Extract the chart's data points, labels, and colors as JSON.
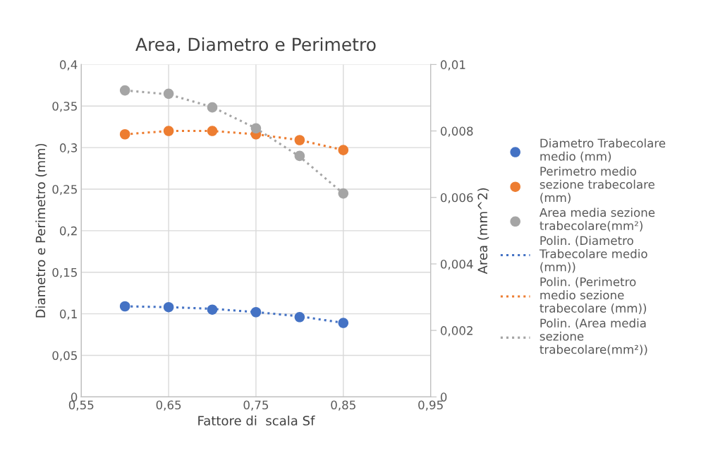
{
  "chart_data": {
    "type": "scatter",
    "title": "Area, Diametro e Perimetro",
    "xlabel": "Fattore di  scala Sf",
    "ylabel": "Diametro e Perimetro (mm)",
    "y2label": "Area (mm^2)",
    "x": [
      0.6,
      0.65,
      0.7,
      0.75,
      0.8,
      0.85
    ],
    "xlim": [
      0.55,
      0.95
    ],
    "xticks": [
      {
        "value": 0.55,
        "label": "0,55"
      },
      {
        "value": 0.65,
        "label": "0,65"
      },
      {
        "value": 0.75,
        "label": "0,75"
      },
      {
        "value": 0.85,
        "label": "0,85"
      },
      {
        "value": 0.95,
        "label": "0,95"
      }
    ],
    "ylim": [
      0,
      0.4
    ],
    "yticks": [
      {
        "value": 0,
        "label": "0"
      },
      {
        "value": 0.05,
        "label": "0,05"
      },
      {
        "value": 0.1,
        "label": "0,1"
      },
      {
        "value": 0.15,
        "label": "0,15"
      },
      {
        "value": 0.2,
        "label": "0,2"
      },
      {
        "value": 0.25,
        "label": "0,25"
      },
      {
        "value": 0.3,
        "label": "0,3"
      },
      {
        "value": 0.35,
        "label": "0,35"
      },
      {
        "value": 0.4,
        "label": "0,4"
      }
    ],
    "y2lim": [
      0,
      0.01
    ],
    "y2ticks": [
      {
        "value": 0,
        "label": "0"
      },
      {
        "value": 0.002,
        "label": "0,002"
      },
      {
        "value": 0.004,
        "label": "0,004"
      },
      {
        "value": 0.006,
        "label": "0,006"
      },
      {
        "value": 0.008,
        "label": "0,008"
      },
      {
        "value": 0.01,
        "label": "0,01"
      }
    ],
    "grid": true,
    "legend": "right",
    "marker": "circle",
    "series": [
      {
        "name": "Diametro Trabecolare medio (mm)",
        "color": "#4472c4",
        "values": [
          0.109,
          0.108,
          0.105,
          0.102,
          0.096,
          0.089
        ]
      },
      {
        "name": "Perimetro medio sezione trabecolare (mm)",
        "color": "#ed7d31",
        "values": [
          0.316,
          0.32,
          0.32,
          0.316,
          0.309,
          0.297
        ]
      },
      {
        "name": "Area media sezione trabecolare(mm²)",
        "color": "#a5a5a5",
        "axis": "y2",
        "values": [
          0.00922,
          0.00912,
          0.00871,
          0.00808,
          0.00725,
          0.00612
        ]
      },
      {
        "type": "line",
        "line_style": "dotted",
        "marker": "none",
        "name": "Polin. (Diametro Trabecolare medio (mm))",
        "color": "#4472c4",
        "values": [
          0.109,
          0.108,
          0.106,
          0.102,
          0.097,
          0.089
        ]
      },
      {
        "type": "line",
        "line_style": "dotted",
        "marker": "none",
        "name": "Polin. (Perimetro medio sezione trabecolare (mm))",
        "color": "#ed7d31",
        "values": [
          0.316,
          0.32,
          0.32,
          0.316,
          0.309,
          0.297
        ]
      },
      {
        "type": "line",
        "line_style": "dotted",
        "marker": "none",
        "axis": "y2",
        "name": "Polin. (Area media sezione trabecolare(mm²))",
        "color": "#a5a5a5",
        "values": [
          0.00922,
          0.0091,
          0.00872,
          0.00808,
          0.00723,
          0.00612
        ]
      }
    ]
  }
}
